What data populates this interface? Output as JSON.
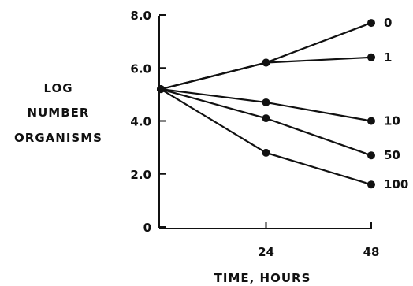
{
  "chart_data": {
    "type": "line",
    "title": "",
    "xlabel": "TIME, HOURS",
    "ylabel_lines": [
      "LOG",
      "NUMBER",
      "ORGANISMS"
    ],
    "x": [
      0,
      24,
      48
    ],
    "xlim": [
      0,
      48
    ],
    "ylim": [
      0,
      8
    ],
    "x_ticks": [
      24,
      48
    ],
    "x_tick_labels": [
      "24",
      "48"
    ],
    "y_ticks": [
      0,
      2,
      4,
      6,
      8
    ],
    "y_tick_labels": [
      "0",
      "2.0",
      "4.0",
      "6.0",
      "8.0"
    ],
    "grid": false,
    "legend": "none",
    "series": [
      {
        "name": "0",
        "values": [
          5.2,
          6.2,
          7.7
        ]
      },
      {
        "name": "1",
        "values": [
          5.2,
          6.2,
          6.4
        ]
      },
      {
        "name": "10",
        "values": [
          5.2,
          4.7,
          4.0
        ]
      },
      {
        "name": "50",
        "values": [
          5.2,
          4.1,
          2.7
        ]
      },
      {
        "name": "100",
        "values": [
          5.2,
          2.8,
          1.6
        ]
      }
    ],
    "colors": {
      "line": "#111111",
      "marker": "#111111"
    }
  }
}
